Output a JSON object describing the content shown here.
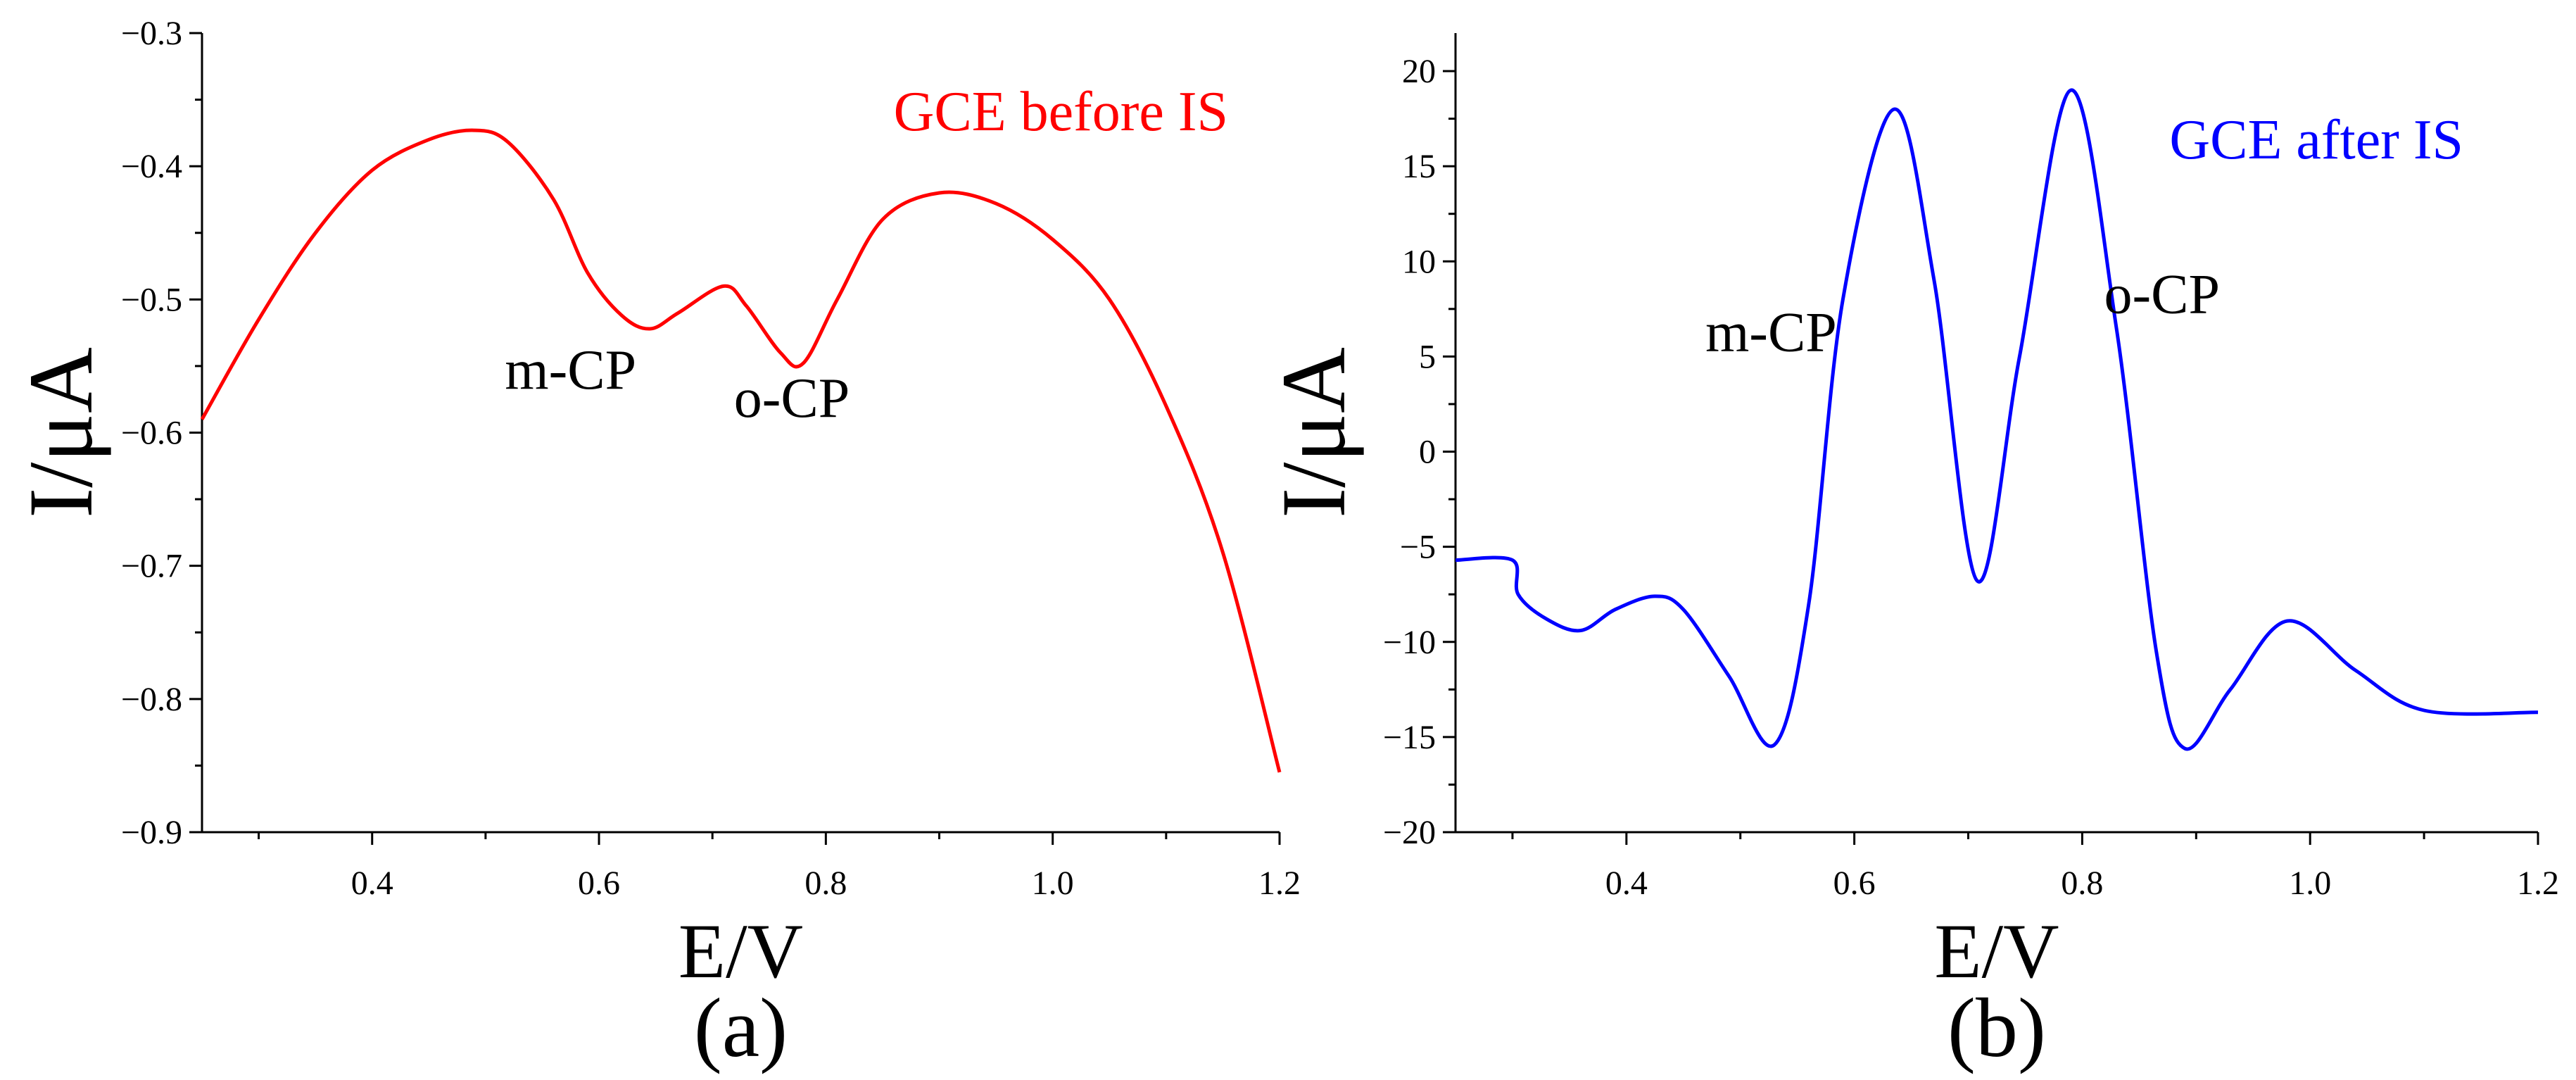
{
  "chart_data": [
    {
      "type": "line",
      "panel_label": "(a)",
      "xlabel": "E/V",
      "ylabel": "I/μA",
      "xlim": [
        0.25,
        1.2
      ],
      "ylim": [
        -0.9,
        -0.3
      ],
      "x_ticks": [
        0.4,
        0.6,
        0.8,
        1.0,
        1.2
      ],
      "x_tick_labels": [
        "0.4",
        "0.6",
        "0.8",
        "1.0",
        "1.2"
      ],
      "y_ticks": [
        -0.3,
        -0.4,
        -0.5,
        -0.6,
        -0.7,
        -0.8,
        -0.9
      ],
      "y_tick_labels": [
        "−0.3",
        "−0.4",
        "−0.5",
        "−0.6",
        "−0.7",
        "−0.8",
        "−0.9"
      ],
      "grid": false,
      "legend_text": "GCE before IS",
      "color": "#ff0000",
      "annotations": [
        {
          "text": "m-CP",
          "x": 0.575,
          "y": -0.567
        },
        {
          "text": "o-CP",
          "x": 0.77,
          "y": -0.588
        }
      ],
      "series": [
        {
          "name": "GCE before IS",
          "x": [
            0.25,
            0.3,
            0.35,
            0.4,
            0.45,
            0.49,
            0.52,
            0.56,
            0.59,
            0.62,
            0.645,
            0.67,
            0.71,
            0.73,
            0.76,
            0.78,
            0.81,
            0.85,
            0.9,
            0.95,
            1.0,
            1.05,
            1.1,
            1.15,
            1.2
          ],
          "y": [
            -0.59,
            -0.515,
            -0.45,
            -0.403,
            -0.38,
            -0.373,
            -0.382,
            -0.425,
            -0.48,
            -0.512,
            -0.522,
            -0.51,
            -0.49,
            -0.505,
            -0.54,
            -0.548,
            -0.5,
            -0.44,
            -0.42,
            -0.428,
            -0.455,
            -0.5,
            -0.58,
            -0.69,
            -0.855
          ]
        }
      ]
    },
    {
      "type": "line",
      "panel_label": "(b)",
      "xlabel": "E/V",
      "ylabel": "I/μA",
      "xlim": [
        0.25,
        1.2
      ],
      "ylim": [
        -20,
        22
      ],
      "x_ticks": [
        0.4,
        0.6,
        0.8,
        1.0,
        1.2
      ],
      "x_tick_labels": [
        "0.4",
        "0.6",
        "0.8",
        "1.0",
        "1.2"
      ],
      "y_ticks": [
        20,
        15,
        10,
        5,
        0,
        -5,
        -10,
        -15,
        -20
      ],
      "y_tick_labels": [
        "20",
        "15",
        "10",
        "5",
        "0",
        "−5",
        "−10",
        "−15",
        "−20"
      ],
      "grid": false,
      "legend_text": "GCE after IS",
      "color": "#0000ff",
      "annotations": [
        {
          "text": "m-CP",
          "x": 0.527,
          "y": 5.3
        },
        {
          "text": "o-CP",
          "x": 0.87,
          "y": 7.3
        }
      ],
      "series": [
        {
          "name": "GCE after IS",
          "x": [
            0.25,
            0.3,
            0.305,
            0.33,
            0.36,
            0.39,
            0.425,
            0.45,
            0.49,
            0.53,
            0.56,
            0.59,
            0.635,
            0.67,
            0.708,
            0.745,
            0.79,
            0.83,
            0.865,
            0.89,
            0.93,
            0.98,
            1.04,
            1.1,
            1.2
          ],
          "y": [
            -5.7,
            -5.7,
            -7.5,
            -8.8,
            -9.4,
            -8.3,
            -7.6,
            -8.3,
            -11.8,
            -15.4,
            -8.0,
            8.0,
            18.0,
            9.0,
            -6.8,
            5.0,
            19.0,
            6.5,
            -10.5,
            -15.6,
            -12.5,
            -8.9,
            -11.5,
            -13.6,
            -13.7
          ]
        }
      ]
    }
  ]
}
